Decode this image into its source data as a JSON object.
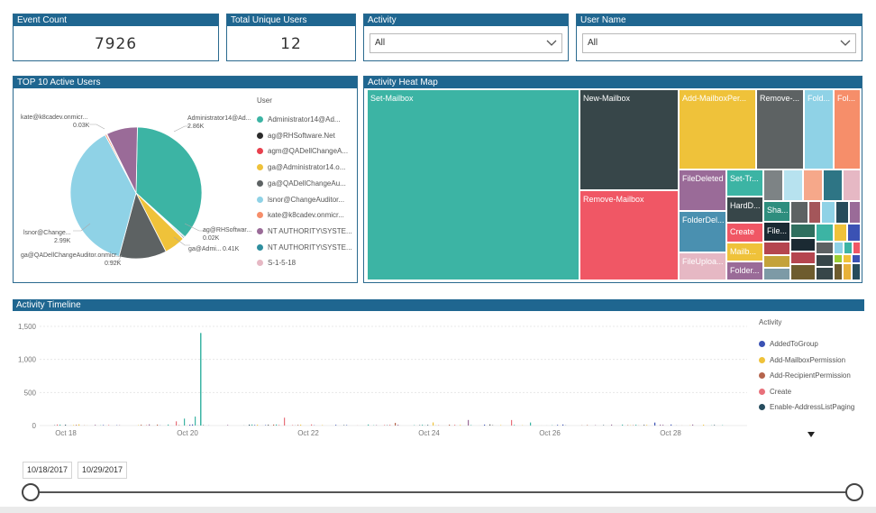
{
  "kpis": {
    "event_count": {
      "title": "Event Count",
      "value": "7926"
    },
    "total_users": {
      "title": "Total Unique Users",
      "value": "12"
    }
  },
  "filters": {
    "activity": {
      "title": "Activity",
      "value": "All"
    },
    "user_name": {
      "title": "User Name",
      "value": "All"
    }
  },
  "pie": {
    "title": "TOP 10 Active Users",
    "legend_title": "User",
    "legend": [
      {
        "label": "Administrator14@Ad...",
        "color": "#3cb4a4"
      },
      {
        "label": "ag@RHSoftware.Net",
        "color": "#2b2b2b"
      },
      {
        "label": "agm@QADellChangeA...",
        "color": "#e8414e"
      },
      {
        "label": "ga@Administrator14.o...",
        "color": "#efc23a"
      },
      {
        "label": "ga@QADellChangeAu...",
        "color": "#5d6263"
      },
      {
        "label": "lsnor@ChangeAuditor...",
        "color": "#8fd2e6"
      },
      {
        "label": "kate@k8cadev.onmicr...",
        "color": "#f68e6a"
      },
      {
        "label": "NT AUTHORITY\\SYSTE...",
        "color": "#9a6b98"
      },
      {
        "label": "NT AUTHORITY\\SYSTE...",
        "color": "#2e8e9e"
      },
      {
        "label": "S-1-5-18",
        "color": "#e6b8c4"
      }
    ],
    "labels": {
      "admin": "Administrator14@Ad...",
      "admin_val": "2.86K",
      "kate": "kate@k8cadev.onmicr...",
      "kate_val": "0.03K",
      "ag": "ag@RHSoftwar...",
      "ag_val": "0.02K",
      "ga_admin": "ga@Admi...",
      "ga_admin_val": "0.41K",
      "lsnor": "lsnor@Change...",
      "lsnor_val": "2.99K",
      "ga_qa": "ga@QADellChangeAuditor.onmicr...",
      "ga_qa_val": "0.92K"
    }
  },
  "chart_data": [
    {
      "type": "pie",
      "title": "TOP 10 Active Users",
      "legend_title": "User",
      "slices": [
        {
          "name": "Administrator14@Ad...",
          "value": 2.86,
          "unit": "K",
          "color": "#3cb4a4"
        },
        {
          "name": "ag@RHSoftware.Net",
          "value": 0.02,
          "unit": "K",
          "color": "#2b2b2b"
        },
        {
          "name": "agm@QADellChangeA...",
          "value": 0.01,
          "unit": "K",
          "color": "#e8414e"
        },
        {
          "name": "ga@Administrator14.o...",
          "value": 0.41,
          "unit": "K",
          "color": "#efc23a"
        },
        {
          "name": "ga@QADellChangeAu...",
          "value": 0.92,
          "unit": "K",
          "color": "#5d6263"
        },
        {
          "name": "lsnor@ChangeAuditor...",
          "value": 2.99,
          "unit": "K",
          "color": "#8fd2e6"
        },
        {
          "name": "kate@k8cadev.onmicr...",
          "value": 0.03,
          "unit": "K",
          "color": "#f68e6a"
        },
        {
          "name": "NT AUTHORITY\\SYSTE...",
          "value": 0.6,
          "unit": "K",
          "color": "#9a6b98"
        },
        {
          "name": "NT AUTHORITY\\SYSTE...",
          "value": 0.02,
          "unit": "K",
          "color": "#2e8e9e"
        },
        {
          "name": "S-1-5-18",
          "value": 0.01,
          "unit": "K",
          "color": "#e6b8c4"
        }
      ]
    },
    {
      "type": "bar",
      "title": "Activity Timeline",
      "legend_title": "Activity",
      "yticks": [
        "1,500",
        "1,000",
        "500",
        "0"
      ],
      "ylim": [
        0,
        1500
      ],
      "xticks": [
        "Oct 18",
        "Oct 20",
        "Oct 22",
        "Oct 24",
        "Oct 26",
        "Oct 28"
      ],
      "series": [
        {
          "name": "AddedToGroup",
          "color": "#3b52b4"
        },
        {
          "name": "Add-MailboxPermission",
          "color": "#efc23a"
        },
        {
          "name": "Add-RecipientPermission",
          "color": "#b5644c"
        },
        {
          "name": "Create",
          "color": "#e8707a"
        },
        {
          "name": "Enable-AddressListPaging",
          "color": "#264c5e"
        }
      ],
      "highlights": [
        {
          "x": "Oct 20",
          "name": "spike",
          "value": 1400,
          "color": "#3cb4a4"
        }
      ]
    }
  ],
  "heatmap": {
    "title": "Activity Heat Map",
    "tiles": [
      {
        "label": "Set-Mailbox",
        "color": "#3cb4a4"
      },
      {
        "label": "New-Mailbox",
        "color": "#374649"
      },
      {
        "label": "Remove-Mailbox",
        "color": "#f05765"
      },
      {
        "label": "Add-MailboxPer...",
        "color": "#efc23a"
      },
      {
        "label": "Remove-...",
        "color": "#5d6263"
      },
      {
        "label": "Fold...",
        "color": "#8fd2e6"
      },
      {
        "label": "Fol...",
        "color": "#f68e6a"
      },
      {
        "label": "FileDeleted",
        "color": "#9a6b98"
      },
      {
        "label": "Set-Tr...",
        "color": "#3cb4a4"
      },
      {
        "label": "HardD...",
        "color": "#374649"
      },
      {
        "label": "FolderDel...",
        "color": "#4a90b0"
      },
      {
        "label": "Create",
        "color": "#f05765"
      },
      {
        "label": "Mailb...",
        "color": "#efc23a"
      },
      {
        "label": "FileUploa...",
        "color": "#e6b8c4"
      },
      {
        "label": "Folder...",
        "color": "#9a6b98"
      },
      {
        "label": "Sha...",
        "color": "#2e8e7e"
      },
      {
        "label": "File...",
        "color": "#1b2a33"
      }
    ]
  },
  "timeline": {
    "title": "Activity Timeline",
    "legend_title": "Activity",
    "legend": [
      {
        "label": "AddedToGroup",
        "color": "#3b52b4"
      },
      {
        "label": "Add-MailboxPermission",
        "color": "#efc23a"
      },
      {
        "label": "Add-RecipientPermission",
        "color": "#b5644c"
      },
      {
        "label": "Create",
        "color": "#e8707a"
      },
      {
        "label": "Enable-AddressListPaging",
        "color": "#264c5e"
      }
    ],
    "yticks": [
      "1,500",
      "1,000",
      "500",
      "0"
    ],
    "xticks": [
      "Oct 18",
      "Oct 20",
      "Oct 22",
      "Oct 24",
      "Oct 26",
      "Oct 28"
    ]
  },
  "slicer": {
    "start": "10/18/2017",
    "end": "10/29/2017"
  }
}
